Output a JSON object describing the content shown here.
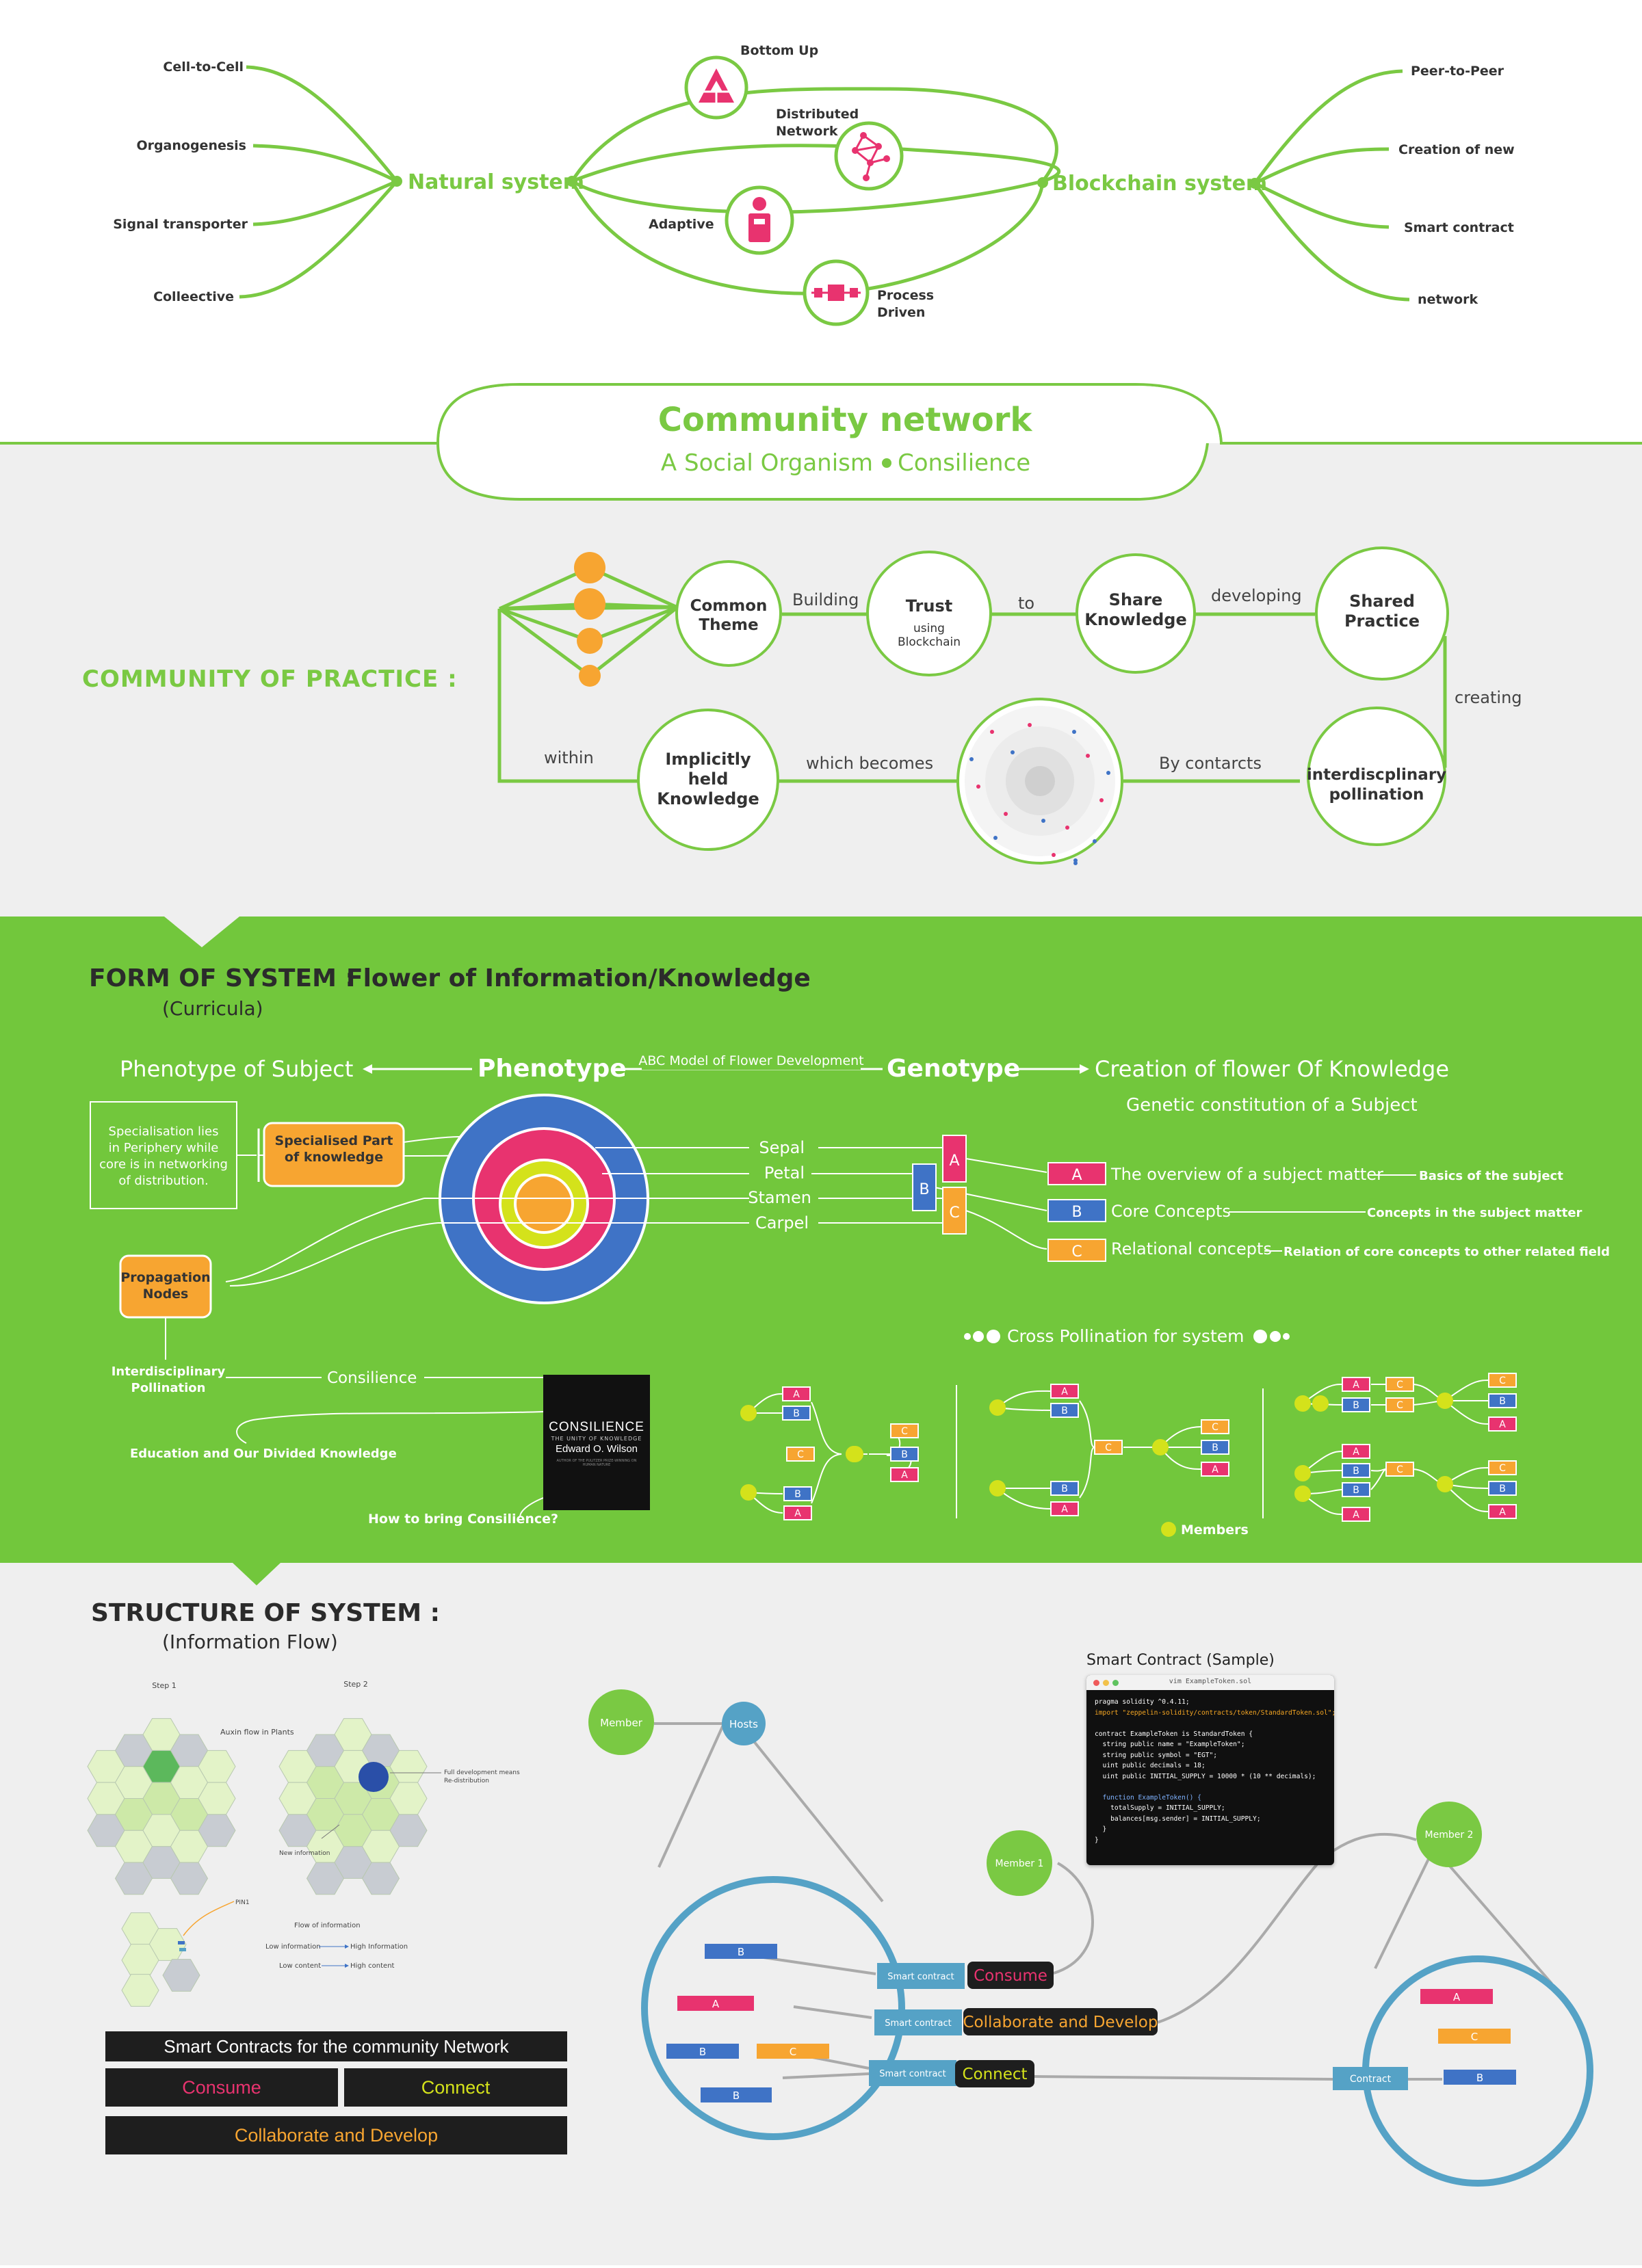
{
  "natural": {
    "title": "Natural system",
    "items": [
      "Cell-to-Cell",
      "Organogenesis",
      "Signal transporter",
      "Colleective"
    ]
  },
  "blockchain": {
    "title": "Blockchain system",
    "items": [
      "Peer-to-Peer",
      "Creation of new",
      "Smart contract",
      "network"
    ]
  },
  "bridge": {
    "bottom_up": "Bottom Up",
    "distributed": [
      "Distributed",
      "Network"
    ],
    "adaptive": "Adaptive",
    "process": [
      "Process",
      "Driven"
    ]
  },
  "community": {
    "title": "Community network",
    "sub1": "A Social Organism",
    "sub2": "Consilience"
  },
  "practice": {
    "heading": "COMMUNITY OF PRACTICE :",
    "common_theme": [
      "Common",
      "Theme"
    ],
    "building": "Building",
    "trust": "Trust",
    "trust_sub": [
      "using",
      "Blockchain"
    ],
    "to": "to",
    "share": [
      "Share",
      "Knowledge"
    ],
    "developing": "developing",
    "shared_practice": [
      "Shared",
      "Practice"
    ],
    "creating": "creating",
    "inter": [
      "interdiscplinary",
      "pollination"
    ],
    "by_contracts": "By contarcts",
    "which_becomes": "which becomes",
    "implicit": [
      "Implicitly",
      "held",
      "Knowledge"
    ],
    "within": "within"
  },
  "form": {
    "heading": "FORM OF SYSTEM :",
    "heading2": "Flower of Information/Knowledge",
    "curricula": "(Curricula)",
    "phenotype_subject": "Phenotype of Subject",
    "phenotype": "Phenotype",
    "abc": "ABC Model of Flower Development",
    "genotype": "Genotype",
    "creation": "Creation of flower Of Knowledge",
    "genetic": "Genetic constitution of a Subject",
    "specialisation": [
      "Specialisation lies",
      "in Periphery while",
      "core is in networking",
      "of distribution."
    ],
    "specialised_part": [
      "Specialised Part",
      "of knowledge"
    ],
    "propagation": [
      "Propagation",
      "Nodes"
    ],
    "parts": [
      "Sepal",
      "Petal",
      "Stamen",
      "Carpel"
    ],
    "letters": [
      "A",
      "B",
      "C"
    ],
    "concepts": [
      "The overview of a subject matter",
      "Core Concepts",
      "Relational concepts"
    ],
    "concept_notes": [
      "Basics of the subject",
      "Concepts in the subject matter",
      "Relation of core concepts to other related field"
    ],
    "interdisciplinary": [
      "Interdisciplinary",
      "Pollination"
    ],
    "consilience": "Consilience",
    "education": "Education and Our Divided Knowledge",
    "how": "How to bring Consilience?",
    "cross": "Cross Pollination for system",
    "members": "Members"
  },
  "book": {
    "title": "CONSILIENCE",
    "sub": "THE UNITY OF KNOWLEDGE",
    "author": "Edward O. Wilson",
    "note": "AUTHOR OF THE PULITZER PRIZE-WINNING ON HUMAN NATURE"
  },
  "structure": {
    "heading": "STRUCTURE OF SYSTEM :",
    "sub": "(Information Flow)",
    "step1": "Step 1",
    "step2": "Step 2",
    "auxin": "Auxin flow in Plants",
    "full_dev": [
      "Full development means",
      "Re-distribution"
    ],
    "new_info": "New information",
    "pin1": "PIN1",
    "flow": "Flow of information",
    "low_info": "Low information",
    "high_info": "High Information",
    "low_content": "Low content",
    "high_content": "High content",
    "member": "Member",
    "hosts": "Hosts",
    "member1": "Member 1",
    "member2": "Member 2",
    "smart_contract": "Smart contract",
    "contract": "Contract",
    "consume": "Consume",
    "collab": "Collaborate and Develop",
    "connect": "Connect",
    "sample": "Smart Contract (Sample)",
    "sc_title": "Smart Contracts for the community Network"
  },
  "code": {
    "file": "vim ExampleToken.sol",
    "lines": [
      "pragma solidity ^0.4.11;",
      "import \"zeppelin-solidity/contracts/token/StandardToken.sol\";",
      "",
      "contract ExampleToken is StandardToken {",
      "  string public name = \"ExampleToken\";",
      "  string public symbol = \"EGT\";",
      "  uint public decimals = 18;",
      "  uint public INITIAL_SUPPLY = 10000 * (10 ** decimals);",
      "",
      "  function ExampleToken() {",
      "    totalSupply = INITIAL_SUPPLY;",
      "    balances[msg.sender] = INITIAL_SUPPLY;",
      "  }",
      "}"
    ]
  },
  "colors": {
    "green": "#7ac943",
    "band": "#72c73c",
    "pink": "#e8336f",
    "blue": "#3f73c6",
    "orange": "#f7a531",
    "lime": "#d4e21b",
    "teal": "#55a2c6",
    "grey": "#efefef"
  }
}
